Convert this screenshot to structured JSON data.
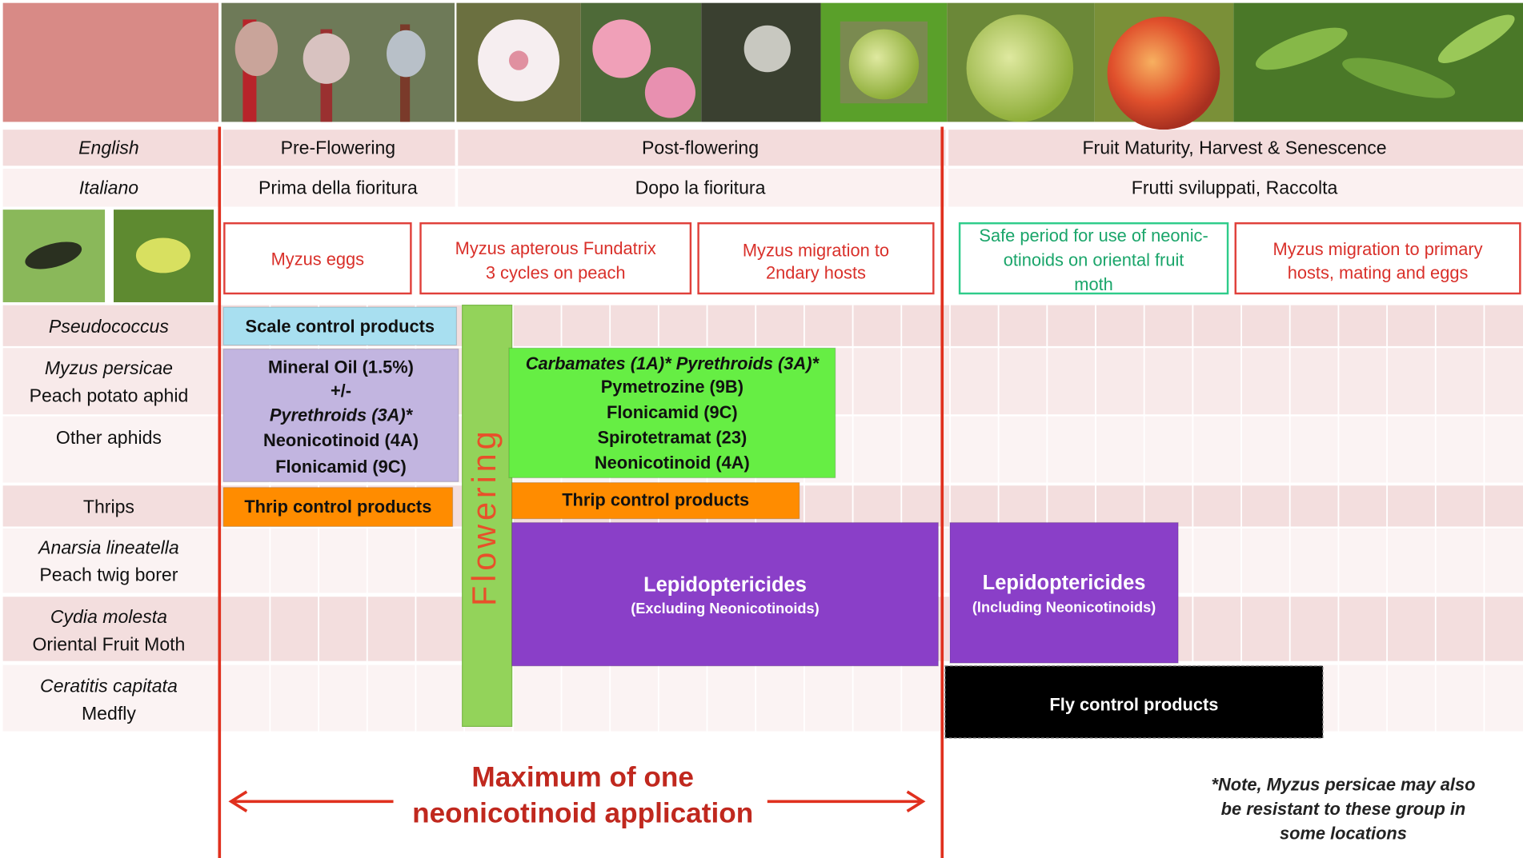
{
  "header": {
    "languages": [
      {
        "label": "English",
        "phases": [
          "Pre-Flowering",
          "Post-flowering",
          "Fruit Maturity, Harvest & Senescence"
        ]
      },
      {
        "label": "Italiano",
        "phases": [
          "Prima della fioritura",
          "Dopo la fioritura",
          "Frutti sviluppati, Raccolta"
        ]
      }
    ]
  },
  "events": [
    {
      "lines": [
        "Myzus eggs"
      ]
    },
    {
      "lines": [
        "Myzus apterous Fundatrix",
        "3 cycles on peach"
      ]
    },
    {
      "lines": [
        "Myzus migration to",
        "2ndary hosts"
      ]
    },
    {
      "lines": [
        "Safe period for use of neonic-",
        "otinoids on oriental fruit",
        "moth"
      ]
    },
    {
      "lines": [
        "Myzus migration to primary",
        "hosts, mating and eggs"
      ]
    }
  ],
  "pests": [
    {
      "lines": [
        "Pseudococcus"
      ]
    },
    {
      "lines": [
        "Myzus persicae",
        "Peach potato aphid"
      ]
    },
    {
      "lines": [
        "Other aphids"
      ]
    },
    {
      "lines": [
        "Thrips"
      ]
    },
    {
      "lines": [
        "Anarsia  lineatella",
        "Peach twig borer"
      ]
    },
    {
      "lines": [
        "Cydia molesta",
        "Oriental Fruit Moth"
      ]
    },
    {
      "lines": [
        "Ceratitis capitata",
        "Medfly"
      ]
    }
  ],
  "flowering": "Flowering",
  "treatments": [
    {
      "lines": [
        "Scale control products"
      ]
    },
    {
      "lines": [
        "Mineral Oil (1.5%)",
        "+/-",
        "Pyrethroids (3A)*",
        "Neonicotinoid (4A)",
        "Flonicamid (9C)"
      ]
    },
    {
      "lines": [
        "Carbamates (1A)*  Pyrethroids (3A)*",
        "Pymetrozine (9B)",
        "Flonicamid (9C)",
        "Spirotetramat (23)",
        "Neonicotinoid (4A)"
      ]
    },
    {
      "lines": [
        "Thrip control products"
      ]
    },
    {
      "lines": [
        "Thrip control products"
      ]
    },
    {
      "lines": [
        "Lepidoptericides",
        "(Excluding  Neonicotinoids)"
      ]
    },
    {
      "lines": [
        "Lepidoptericides",
        "(Including Neonicotinoids)"
      ]
    },
    {
      "lines": [
        "Fly control products"
      ]
    }
  ],
  "footer": {
    "limit": [
      "Maximum of one",
      "neonicotinoid application"
    ],
    "note": [
      "*Note, Myzus persicae may also",
      "be resistant to these group in",
      "some locations"
    ]
  }
}
